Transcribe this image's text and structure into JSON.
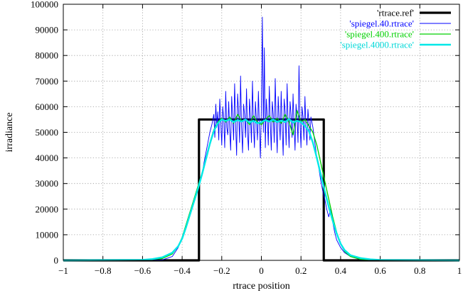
{
  "chart_data": {
    "type": "line",
    "title": "",
    "xlabel": "rtrace position",
    "ylabel": "irradiance",
    "xlim": [
      -1,
      1
    ],
    "ylim": [
      0,
      100000
    ],
    "x_ticks": [
      -1,
      -0.8,
      -0.6,
      -0.4,
      -0.2,
      0,
      0.2,
      0.4,
      0.6,
      0.8,
      1
    ],
    "x_tick_labels": [
      "−1",
      "−0.8",
      "−0.6",
      "−0.4",
      "−0.2",
      "0",
      "0.2",
      "0.4",
      "0.6",
      "0.8",
      "1"
    ],
    "y_ticks": [
      0,
      10000,
      20000,
      30000,
      40000,
      50000,
      60000,
      70000,
      80000,
      90000,
      100000
    ],
    "y_tick_labels": [
      "0",
      "10000",
      "20000",
      "30000",
      "40000",
      "50000",
      "60000",
      "70000",
      "80000",
      "90000",
      "100000"
    ],
    "grid": true,
    "legend_position": "top-right",
    "series": [
      {
        "name": "'rtrace.ref'",
        "color": "#000000",
        "points": [
          [
            -1,
            0
          ],
          [
            -0.315,
            0
          ],
          [
            -0.315,
            55000
          ],
          [
            0.315,
            55000
          ],
          [
            0.315,
            0
          ],
          [
            1,
            0
          ]
        ]
      },
      {
        "name": "'spiegel.40.rtrace'",
        "color": "#0000ff",
        "points": [
          [
            -1,
            0
          ],
          [
            -0.6,
            0
          ],
          [
            -0.5,
            200
          ],
          [
            -0.45,
            1500
          ],
          [
            -0.42,
            5000
          ],
          [
            -0.4,
            9000
          ],
          [
            -0.38,
            14000
          ],
          [
            -0.36,
            19000
          ],
          [
            -0.34,
            23000
          ],
          [
            -0.32,
            28000
          ],
          [
            -0.3,
            33000
          ],
          [
            -0.29,
            38000
          ],
          [
            -0.28,
            42000
          ],
          [
            -0.27,
            46000
          ],
          [
            -0.26,
            50000
          ],
          [
            -0.25,
            53000
          ],
          [
            -0.24,
            57000
          ],
          [
            -0.235,
            48000
          ],
          [
            -0.23,
            61000
          ],
          [
            -0.225,
            52000
          ],
          [
            -0.22,
            58000
          ],
          [
            -0.215,
            47000
          ],
          [
            -0.21,
            63000
          ],
          [
            -0.205,
            54000
          ],
          [
            -0.2,
            45000
          ],
          [
            -0.195,
            60000
          ],
          [
            -0.19,
            55000
          ],
          [
            -0.185,
            44000
          ],
          [
            -0.18,
            66000
          ],
          [
            -0.175,
            52000
          ],
          [
            -0.17,
            49000
          ],
          [
            -0.165,
            62000
          ],
          [
            -0.16,
            51000
          ],
          [
            -0.155,
            43000
          ],
          [
            -0.15,
            64000
          ],
          [
            -0.145,
            56000
          ],
          [
            -0.14,
            47000
          ],
          [
            -0.135,
            69000
          ],
          [
            -0.13,
            53000
          ],
          [
            -0.125,
            41000
          ],
          [
            -0.12,
            65000
          ],
          [
            -0.115,
            58000
          ],
          [
            -0.11,
            46000
          ],
          [
            -0.105,
            72000
          ],
          [
            -0.1,
            52000
          ],
          [
            -0.095,
            42000
          ],
          [
            -0.09,
            61000
          ],
          [
            -0.085,
            57000
          ],
          [
            -0.08,
            48000
          ],
          [
            -0.075,
            67000
          ],
          [
            -0.07,
            50000
          ],
          [
            -0.065,
            43000
          ],
          [
            -0.06,
            63000
          ],
          [
            -0.055,
            56000
          ],
          [
            -0.05,
            46000
          ],
          [
            -0.045,
            70000
          ],
          [
            -0.04,
            53000
          ],
          [
            -0.035,
            44000
          ],
          [
            -0.03,
            62000
          ],
          [
            -0.025,
            55000
          ],
          [
            -0.02,
            47000
          ],
          [
            -0.015,
            66000
          ],
          [
            -0.01,
            52000
          ],
          [
            -0.005,
            40000
          ],
          [
            0,
            60000
          ],
          [
            0.005,
            95000
          ],
          [
            0.01,
            50000
          ],
          [
            0.015,
            83000
          ],
          [
            0.02,
            44000
          ],
          [
            0.025,
            63000
          ],
          [
            0.03,
            56000
          ],
          [
            0.035,
            45000
          ],
          [
            0.04,
            68000
          ],
          [
            0.045,
            54000
          ],
          [
            0.05,
            43000
          ],
          [
            0.055,
            62000
          ],
          [
            0.06,
            57000
          ],
          [
            0.065,
            46000
          ],
          [
            0.07,
            71000
          ],
          [
            0.075,
            53000
          ],
          [
            0.08,
            42000
          ],
          [
            0.085,
            64000
          ],
          [
            0.09,
            55000
          ],
          [
            0.095,
            47000
          ],
          [
            0.1,
            66000
          ],
          [
            0.105,
            52000
          ],
          [
            0.11,
            41000
          ],
          [
            0.115,
            63000
          ],
          [
            0.12,
            58000
          ],
          [
            0.125,
            45000
          ],
          [
            0.13,
            69000
          ],
          [
            0.135,
            54000
          ],
          [
            0.14,
            44000
          ],
          [
            0.145,
            62000
          ],
          [
            0.15,
            57000
          ],
          [
            0.155,
            48000
          ],
          [
            0.16,
            65000
          ],
          [
            0.165,
            53000
          ],
          [
            0.17,
            43000
          ],
          [
            0.175,
            61000
          ],
          [
            0.18,
            56000
          ],
          [
            0.185,
            46000
          ],
          [
            0.19,
            76000
          ],
          [
            0.195,
            54000
          ],
          [
            0.2,
            44000
          ],
          [
            0.205,
            60000
          ],
          [
            0.21,
            56000
          ],
          [
            0.215,
            47000
          ],
          [
            0.22,
            64000
          ],
          [
            0.225,
            52000
          ],
          [
            0.23,
            45000
          ],
          [
            0.235,
            59000
          ],
          [
            0.24,
            54000
          ],
          [
            0.245,
            47000
          ],
          [
            0.25,
            56000
          ],
          [
            0.26,
            52000
          ],
          [
            0.27,
            46000
          ],
          [
            0.28,
            40000
          ],
          [
            0.29,
            36000
          ],
          [
            0.3,
            31000
          ],
          [
            0.31,
            27000
          ],
          [
            0.32,
            24000
          ],
          [
            0.33,
            20000
          ],
          [
            0.34,
            17000
          ],
          [
            0.35,
            20000
          ],
          [
            0.36,
            15000
          ],
          [
            0.37,
            11000
          ],
          [
            0.38,
            8000
          ],
          [
            0.4,
            5000
          ],
          [
            0.42,
            3000
          ],
          [
            0.45,
            1500
          ],
          [
            0.5,
            300
          ],
          [
            0.6,
            0
          ],
          [
            1,
            0
          ]
        ]
      },
      {
        "name": "'spiegel.400.rtrace'",
        "color": "#00d000",
        "points": [
          [
            -1,
            0
          ],
          [
            -0.6,
            100
          ],
          [
            -0.5,
            700
          ],
          [
            -0.45,
            2500
          ],
          [
            -0.42,
            5500
          ],
          [
            -0.4,
            9000
          ],
          [
            -0.38,
            14000
          ],
          [
            -0.36,
            19000
          ],
          [
            -0.34,
            24000
          ],
          [
            -0.32,
            29000
          ],
          [
            -0.3,
            34000
          ],
          [
            -0.28,
            40000
          ],
          [
            -0.26,
            46000
          ],
          [
            -0.24,
            51000
          ],
          [
            -0.22,
            54000
          ],
          [
            -0.2,
            55500
          ],
          [
            -0.18,
            54000
          ],
          [
            -0.16,
            56000
          ],
          [
            -0.14,
            53500
          ],
          [
            -0.12,
            57000
          ],
          [
            -0.1,
            54500
          ],
          [
            -0.08,
            55000
          ],
          [
            -0.06,
            53000
          ],
          [
            -0.04,
            56500
          ],
          [
            -0.02,
            54000
          ],
          [
            0,
            53000
          ],
          [
            0.02,
            55000
          ],
          [
            0.04,
            56500
          ],
          [
            0.06,
            54000
          ],
          [
            0.08,
            55500
          ],
          [
            0.1,
            53500
          ],
          [
            0.12,
            57000
          ],
          [
            0.14,
            54000
          ],
          [
            0.16,
            49000
          ],
          [
            0.18,
            58500
          ],
          [
            0.2,
            54000
          ],
          [
            0.22,
            55000
          ],
          [
            0.24,
            52500
          ],
          [
            0.26,
            50000
          ],
          [
            0.28,
            45000
          ],
          [
            0.3,
            38000
          ],
          [
            0.32,
            31000
          ],
          [
            0.34,
            24000
          ],
          [
            0.36,
            17000
          ],
          [
            0.38,
            11000
          ],
          [
            0.4,
            6500
          ],
          [
            0.42,
            3500
          ],
          [
            0.45,
            1500
          ],
          [
            0.5,
            400
          ],
          [
            0.6,
            100
          ],
          [
            1,
            0
          ]
        ]
      },
      {
        "name": "'spiegel.4000.rtrace'",
        "color": "#00e8e8",
        "points": [
          [
            -1,
            0
          ],
          [
            -0.6,
            200
          ],
          [
            -0.55,
            500
          ],
          [
            -0.5,
            1200
          ],
          [
            -0.45,
            3000
          ],
          [
            -0.42,
            5500
          ],
          [
            -0.4,
            8500
          ],
          [
            -0.38,
            13000
          ],
          [
            -0.36,
            18000
          ],
          [
            -0.34,
            23000
          ],
          [
            -0.32,
            28000
          ],
          [
            -0.3,
            33500
          ],
          [
            -0.28,
            39500
          ],
          [
            -0.26,
            45500
          ],
          [
            -0.24,
            50500
          ],
          [
            -0.22,
            53500
          ],
          [
            -0.2,
            55000
          ],
          [
            -0.18,
            54500
          ],
          [
            -0.16,
            55000
          ],
          [
            -0.14,
            54000
          ],
          [
            -0.12,
            54800
          ],
          [
            -0.1,
            54200
          ],
          [
            -0.08,
            55000
          ],
          [
            -0.06,
            53800
          ],
          [
            -0.04,
            54500
          ],
          [
            -0.02,
            53500
          ],
          [
            0,
            54000
          ],
          [
            0.02,
            54800
          ],
          [
            0.04,
            54200
          ],
          [
            0.06,
            55000
          ],
          [
            0.08,
            54000
          ],
          [
            0.1,
            54600
          ],
          [
            0.12,
            54000
          ],
          [
            0.14,
            55200
          ],
          [
            0.16,
            53800
          ],
          [
            0.18,
            54500
          ],
          [
            0.2,
            54000
          ],
          [
            0.22,
            52500
          ],
          [
            0.24,
            50500
          ],
          [
            0.26,
            46000
          ],
          [
            0.28,
            40000
          ],
          [
            0.3,
            33500
          ],
          [
            0.32,
            27000
          ],
          [
            0.34,
            21000
          ],
          [
            0.36,
            15500
          ],
          [
            0.38,
            10500
          ],
          [
            0.4,
            6500
          ],
          [
            0.42,
            4000
          ],
          [
            0.45,
            2000
          ],
          [
            0.5,
            900
          ],
          [
            0.55,
            400
          ],
          [
            0.6,
            150
          ],
          [
            1,
            0
          ]
        ]
      }
    ]
  }
}
